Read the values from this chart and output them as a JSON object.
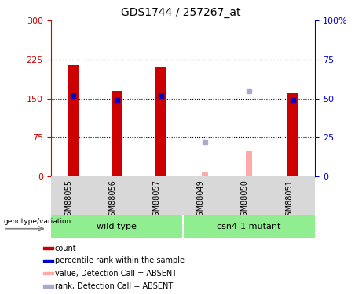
{
  "title": "GDS1744 / 257267_at",
  "categories": [
    "GSM88055",
    "GSM88056",
    "GSM88057",
    "GSM88049",
    "GSM88050",
    "GSM88051"
  ],
  "count_values": [
    215,
    165,
    210,
    0,
    0,
    160
  ],
  "percentile_values": [
    52,
    49,
    52,
    0,
    0,
    49
  ],
  "absent_count_values": [
    0,
    0,
    0,
    8,
    50,
    0
  ],
  "absent_rank_values": [
    0,
    0,
    0,
    22,
    55,
    0
  ],
  "left_ylim": [
    0,
    300
  ],
  "right_ylim": [
    0,
    100
  ],
  "left_yticks": [
    0,
    75,
    150,
    225,
    300
  ],
  "right_yticks": [
    0,
    25,
    50,
    75,
    100
  ],
  "right_yticklabels": [
    "0",
    "25",
    "50",
    "75",
    "100%"
  ],
  "bar_color_count": "#cc0000",
  "bar_color_percentile": "#0000cc",
  "bar_color_absent_count": "#ffaaaa",
  "bar_color_absent_rank": "#aaaacc",
  "group_color": "#90ee90",
  "bg_color": "#d8d8d8",
  "legend_items": [
    {
      "label": "count",
      "color": "#cc0000"
    },
    {
      "label": "percentile rank within the sample",
      "color": "#0000cc"
    },
    {
      "label": "value, Detection Call = ABSENT",
      "color": "#ffaaaa"
    },
    {
      "label": "rank, Detection Call = ABSENT",
      "color": "#aaaacc"
    }
  ]
}
